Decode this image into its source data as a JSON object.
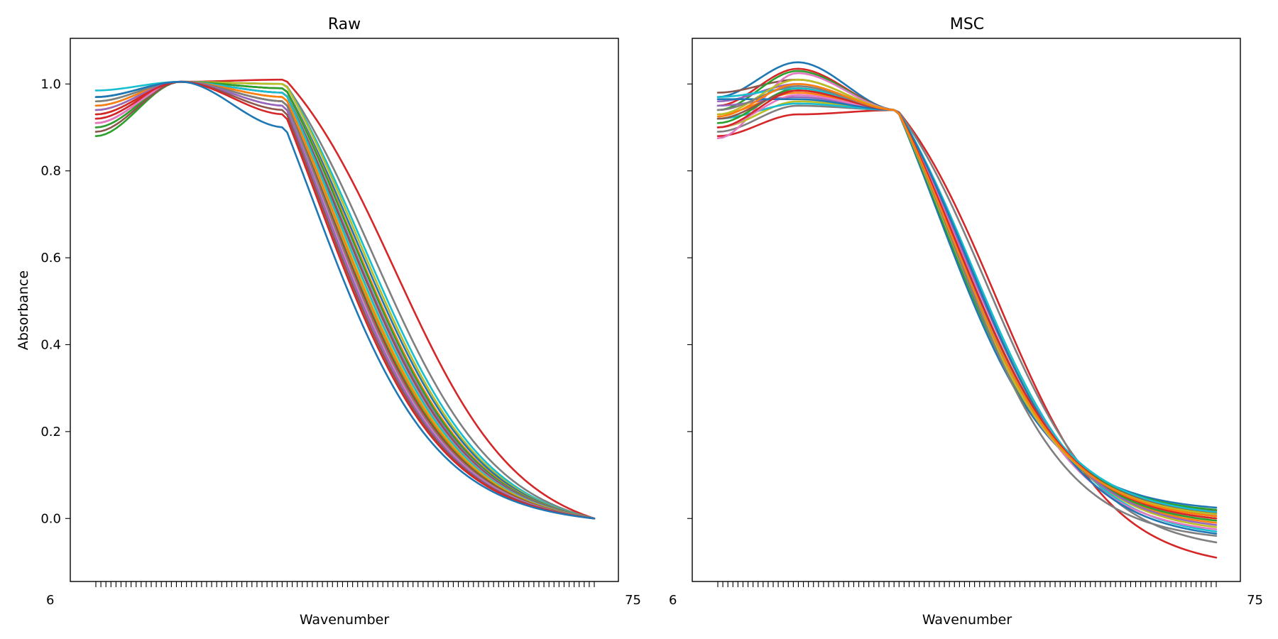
{
  "chart_data": [
    {
      "type": "line",
      "title": "Raw",
      "xlabel": "Wavenumber",
      "ylabel": "Absorbance",
      "ylim": [
        -0.145,
        1.105
      ],
      "yticks": [
        "0.0",
        "0.2",
        "0.4",
        "0.6",
        "0.8",
        "1.0"
      ],
      "ytick_values": [
        0.0,
        0.2,
        0.4,
        0.6,
        0.8,
        1.0
      ],
      "grid": false,
      "n_points": 100,
      "visible_x_tick_text": {
        "first": "6",
        "last": "75"
      },
      "series": [
        {
          "color": "#d62728",
          "start": 0.91,
          "plateau": 1.01,
          "mid": 0.6
        },
        {
          "color": "#7f7f7f",
          "start": 0.93,
          "plateau": 1.0,
          "mid": 0.555
        },
        {
          "color": "#17becf",
          "start": 0.985,
          "plateau": 1.0,
          "mid": 0.535
        },
        {
          "color": "#bcbd22",
          "start": 0.96,
          "plateau": 1.0,
          "mid": 0.525
        },
        {
          "color": "#1f77b4",
          "start": 0.95,
          "plateau": 0.99,
          "mid": 0.52
        },
        {
          "color": "#ff7f0e",
          "start": 0.94,
          "plateau": 0.99,
          "mid": 0.51
        },
        {
          "color": "#2ca02c",
          "start": 0.88,
          "plateau": 0.99,
          "mid": 0.505
        },
        {
          "color": "#9467bd",
          "start": 0.92,
          "plateau": 0.98,
          "mid": 0.5
        },
        {
          "color": "#8c564b",
          "start": 0.97,
          "plateau": 0.98,
          "mid": 0.495
        },
        {
          "color": "#e377c2",
          "start": 0.9,
          "plateau": 0.97,
          "mid": 0.49
        },
        {
          "color": "#17becf",
          "start": 0.97,
          "plateau": 0.98,
          "mid": 0.485
        },
        {
          "color": "#bcbd22",
          "start": 0.93,
          "plateau": 0.97,
          "mid": 0.48
        },
        {
          "color": "#ff7f0e",
          "start": 0.95,
          "plateau": 0.97,
          "mid": 0.475
        },
        {
          "color": "#2ca02c",
          "start": 0.9,
          "plateau": 0.96,
          "mid": 0.47
        },
        {
          "color": "#d62728",
          "start": 0.92,
          "plateau": 0.96,
          "mid": 0.465
        },
        {
          "color": "#7f7f7f",
          "start": 0.96,
          "plateau": 0.96,
          "mid": 0.46
        },
        {
          "color": "#e377c2",
          "start": 0.91,
          "plateau": 0.95,
          "mid": 0.455
        },
        {
          "color": "#9467bd",
          "start": 0.94,
          "plateau": 0.95,
          "mid": 0.45
        },
        {
          "color": "#8c564b",
          "start": 0.89,
          "plateau": 0.94,
          "mid": 0.445
        },
        {
          "color": "#d62728",
          "start": 0.93,
          "plateau": 0.93,
          "mid": 0.44
        },
        {
          "color": "#1f77b4",
          "start": 0.97,
          "plateau": 0.9,
          "mid": 0.43
        }
      ]
    },
    {
      "type": "line",
      "title": "MSC",
      "xlabel": "Wavenumber",
      "ylabel": "",
      "ylim": [
        -0.145,
        1.105
      ],
      "yticks": [
        "0.0",
        "0.2",
        "0.4",
        "0.6",
        "0.8",
        "1.0"
      ],
      "ytick_values": [
        0.0,
        0.2,
        0.4,
        0.6,
        0.8,
        1.0
      ],
      "grid": false,
      "n_points": 100,
      "visible_x_tick_text": {
        "first": "6",
        "last": "75"
      },
      "series": [
        {
          "color": "#d62728",
          "start": 0.88,
          "plateau": 0.93,
          "mid": 0.56,
          "end": -0.09
        },
        {
          "color": "#7f7f7f",
          "start": 0.89,
          "plateau": 0.95,
          "mid": 0.54,
          "end": -0.055
        },
        {
          "color": "#1f77b4",
          "start": 0.97,
          "plateau": 1.05,
          "mid": 0.44,
          "end": 0.025
        },
        {
          "color": "#d62728",
          "start": 0.95,
          "plateau": 1.035,
          "mid": 0.455,
          "end": 0.018
        },
        {
          "color": "#8c564b",
          "start": 0.98,
          "plateau": 1.01,
          "mid": 0.465,
          "end": 0.012
        },
        {
          "color": "#2ca02c",
          "start": 0.94,
          "plateau": 1.03,
          "mid": 0.45,
          "end": 0.02
        },
        {
          "color": "#e377c2",
          "start": 0.875,
          "plateau": 1.025,
          "mid": 0.46,
          "end": 0.008
        },
        {
          "color": "#9467bd",
          "start": 0.96,
          "plateau": 1.0,
          "mid": 0.47,
          "end": 0.0
        },
        {
          "color": "#bcbd22",
          "start": 0.9,
          "plateau": 0.96,
          "mid": 0.5,
          "end": -0.02
        },
        {
          "color": "#17becf",
          "start": 0.92,
          "plateau": 0.955,
          "mid": 0.51,
          "end": -0.03
        },
        {
          "color": "#ff7f0e",
          "start": 0.93,
          "plateau": 0.98,
          "mid": 0.485,
          "end": -0.01
        },
        {
          "color": "#2ca02c",
          "start": 0.91,
          "plateau": 0.99,
          "mid": 0.48,
          "end": -0.005
        },
        {
          "color": "#9467bd",
          "start": 0.95,
          "plateau": 0.97,
          "mid": 0.495,
          "end": -0.015
        },
        {
          "color": "#8c564b",
          "start": 0.92,
          "plateau": 0.985,
          "mid": 0.475,
          "end": 0.005
        },
        {
          "color": "#e377c2",
          "start": 0.9,
          "plateau": 0.975,
          "mid": 0.49,
          "end": -0.025
        },
        {
          "color": "#1f77b4",
          "start": 0.965,
          "plateau": 0.965,
          "mid": 0.505,
          "end": -0.035
        },
        {
          "color": "#17becf",
          "start": 0.97,
          "plateau": 0.99,
          "mid": 0.47,
          "end": 0.015
        },
        {
          "color": "#d62728",
          "start": 0.9,
          "plateau": 0.985,
          "mid": 0.48,
          "end": 0.0
        },
        {
          "color": "#bcbd22",
          "start": 0.93,
          "plateau": 1.01,
          "mid": 0.46,
          "end": 0.01
        },
        {
          "color": "#7f7f7f",
          "start": 0.94,
          "plateau": 0.995,
          "mid": 0.475,
          "end": -0.04
        },
        {
          "color": "#ff7f0e",
          "start": 0.925,
          "plateau": 1.0,
          "mid": 0.47,
          "end": 0.005
        }
      ]
    }
  ]
}
